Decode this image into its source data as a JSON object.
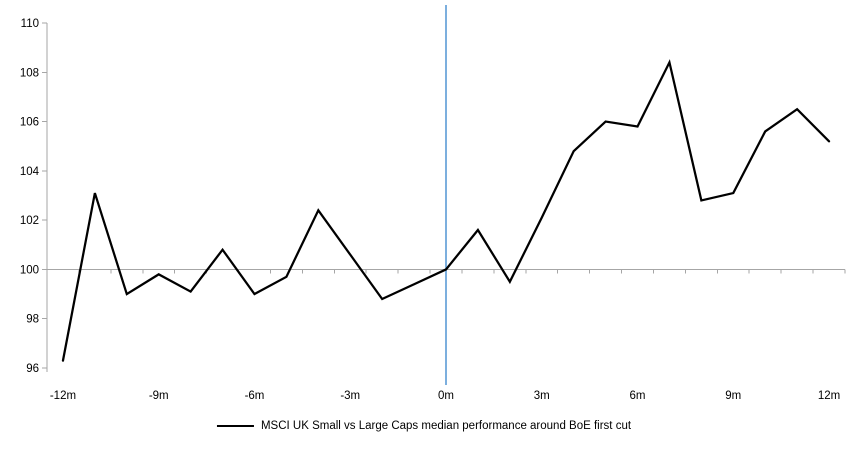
{
  "chart_data": {
    "type": "line",
    "title": "",
    "x": [
      -12,
      -11,
      -10,
      -9,
      -8,
      -7,
      -6,
      -5,
      -4,
      -3,
      -2,
      -1,
      0,
      1,
      2,
      3,
      4,
      5,
      6,
      7,
      8,
      9,
      10,
      11,
      12
    ],
    "series": [
      {
        "name": "MSCI UK Small vs Large Caps median performance around BoE first cut",
        "color": "#000000",
        "values": [
          96.3,
          103.1,
          99.0,
          99.8,
          99.1,
          100.8,
          99.0,
          99.7,
          102.4,
          100.6,
          98.8,
          99.4,
          100.0,
          101.6,
          99.5,
          102.1,
          104.8,
          106.0,
          105.8,
          108.4,
          102.8,
          103.1,
          105.6,
          106.5,
          105.2
        ]
      }
    ],
    "xlabel": "",
    "ylabel": "",
    "ylim": [
      96,
      110
    ],
    "y_ticks": [
      96,
      98,
      100,
      102,
      104,
      106,
      108,
      110
    ],
    "x_tick_months": [
      -12,
      -9,
      -6,
      -3,
      0,
      3,
      6,
      9,
      12
    ],
    "x_tick_labels": [
      "-12m",
      "-9m",
      "-6m",
      "-3m",
      "0m",
      "3m",
      "6m",
      "9m",
      "12m"
    ],
    "baseline_value": 100,
    "event_line": {
      "x": 0,
      "color": "#5B9BD5"
    },
    "axis_color": "#A6A6A6",
    "baseline_color": "#A6A6A6",
    "grid": "off",
    "legend_position": "bottom"
  }
}
